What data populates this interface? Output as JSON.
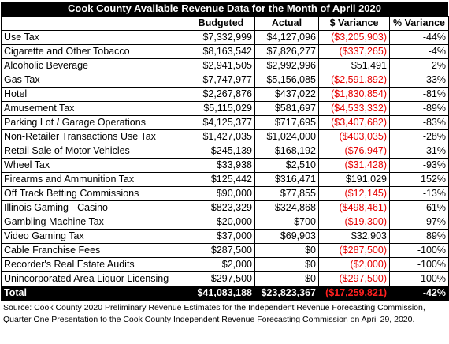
{
  "title": "Cook County Available Revenue Data for the Month of April 2020",
  "headers": [
    "",
    "Budgeted",
    "Actual",
    "$ Variance",
    "% Variance"
  ],
  "rows": [
    {
      "label": "Use Tax",
      "budgeted": "$7,332,999",
      "actual": "$4,127,096",
      "variance": "($3,205,903)",
      "pct": "-44%",
      "negative": true
    },
    {
      "label": "Cigarette and Other Tobacco",
      "budgeted": "$8,163,542",
      "actual": "$7,826,277",
      "variance": "($337,265)",
      "pct": "-4%",
      "negative": true
    },
    {
      "label": "Alcoholic Beverage",
      "budgeted": "$2,941,505",
      "actual": "$2,992,996",
      "variance": "$51,491",
      "pct": "2%",
      "negative": false
    },
    {
      "label": "Gas Tax",
      "budgeted": "$7,747,977",
      "actual": "$5,156,085",
      "variance": "($2,591,892)",
      "pct": "-33%",
      "negative": true
    },
    {
      "label": "Hotel",
      "budgeted": "$2,267,876",
      "actual": "$437,022",
      "variance": "($1,830,854)",
      "pct": "-81%",
      "negative": true
    },
    {
      "label": "Amusement Tax",
      "budgeted": "$5,115,029",
      "actual": "$581,697",
      "variance": "($4,533,332)",
      "pct": "-89%",
      "negative": true
    },
    {
      "label": "Parking Lot / Garage Operations",
      "budgeted": "$4,125,377",
      "actual": "$717,695",
      "variance": "($3,407,682)",
      "pct": "-83%",
      "negative": true
    },
    {
      "label": "Non-Retailer Transactions Use Tax",
      "budgeted": "$1,427,035",
      "actual": "$1,024,000",
      "variance": "($403,035)",
      "pct": "-28%",
      "negative": true
    },
    {
      "label": "Retail Sale of Motor Vehicles",
      "budgeted": "$245,139",
      "actual": "$168,192",
      "variance": "($76,947)",
      "pct": "-31%",
      "negative": true
    },
    {
      "label": "Wheel Tax",
      "budgeted": "$33,938",
      "actual": "$2,510",
      "variance": "($31,428)",
      "pct": "-93%",
      "negative": true
    },
    {
      "label": "Firearms and Ammunition Tax",
      "budgeted": "$125,442",
      "actual": "$316,471",
      "variance": "$191,029",
      "pct": "152%",
      "negative": false
    },
    {
      "label": "Off Track Betting Commissions",
      "budgeted": "$90,000",
      "actual": "$77,855",
      "variance": "($12,145)",
      "pct": "-13%",
      "negative": true
    },
    {
      "label": "Illinois Gaming - Casino",
      "budgeted": "$823,329",
      "actual": "$324,868",
      "variance": "($498,461)",
      "pct": "-61%",
      "negative": true
    },
    {
      "label": "Gambling Machine Tax",
      "budgeted": "$20,000",
      "actual": "$700",
      "variance": "($19,300)",
      "pct": "-97%",
      "negative": true
    },
    {
      "label": "Video Gaming Tax",
      "budgeted": "$37,000",
      "actual": "$69,903",
      "variance": "$32,903",
      "pct": "89%",
      "negative": false
    },
    {
      "label": "Cable Franchise Fees",
      "budgeted": "$287,500",
      "actual": "$0",
      "variance": "($287,500)",
      "pct": "-100%",
      "negative": true
    },
    {
      "label": "Recorder's Real Estate Audits",
      "budgeted": "$2,000",
      "actual": "$0",
      "variance": "($2,000)",
      "pct": "-100%",
      "negative": true
    },
    {
      "label": "Unincorporated Area Liquor Licensing",
      "budgeted": "$297,500",
      "actual": "$0",
      "variance": "($297,500)",
      "pct": "-100%",
      "negative": true
    }
  ],
  "total": {
    "label": "Total",
    "budgeted": "$41,083,188",
    "actual": "$23,823,367",
    "variance": "($17,259,821)",
    "pct": "-42%"
  },
  "source": "Source: Cook County 2020 Preliminary Revenue Estimates for the Independent Revenue Forecasting Commission, Quarter One Presentation to the Cook County Independent Revenue Forecasting Commission on April 29, 2020.",
  "colors": {
    "negative": "#e60000",
    "header_bg": "#000000",
    "header_text": "#ffffff"
  }
}
